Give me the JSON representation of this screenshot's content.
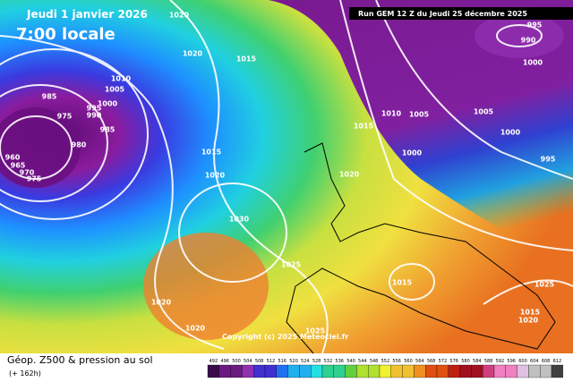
{
  "header": {
    "date": "Jeudi 1 janvier 2026",
    "time": "7:00 locale",
    "run": "Run GEM 12 Z du Jeudi 25 décembre 2025"
  },
  "isobar_labels": [
    1020,
    1020,
    1015,
    1010,
    1005,
    1000,
    995,
    990,
    985,
    985,
    975,
    980,
    960,
    965,
    970,
    975,
    1015,
    1020,
    1030,
    1025,
    1020,
    1020,
    1025,
    1020,
    1015,
    1010,
    1005,
    1000,
    1005,
    1000,
    995,
    990,
    1000,
    995,
    1015,
    1025,
    1015,
    1020
  ],
  "copyright": "Copyright (c) 2025 Meteociel.fr",
  "legend": {
    "title": "Géop. Z500 & pression au sol",
    "lead": "(+ 162h)",
    "colorbar": [
      492,
      496,
      500,
      504,
      508,
      512,
      516,
      520,
      524,
      528,
      532,
      536,
      540,
      544,
      548,
      552,
      556,
      560,
      564,
      568,
      572,
      576,
      580,
      584,
      588,
      592,
      596,
      600,
      604,
      608,
      612
    ]
  }
}
